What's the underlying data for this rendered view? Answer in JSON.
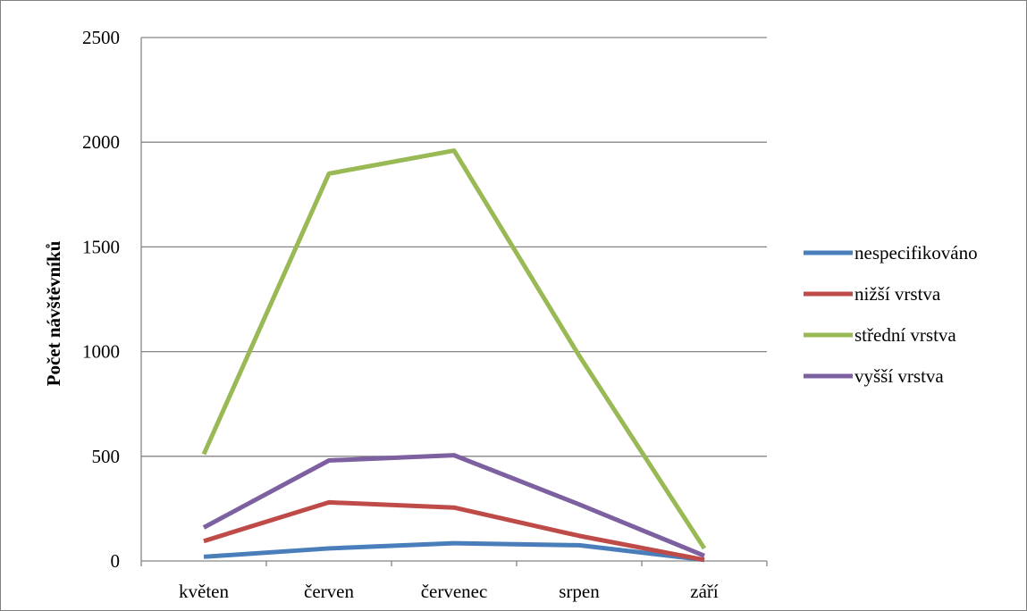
{
  "chart_data": {
    "type": "line",
    "title": "",
    "xlabel": "",
    "ylabel": "Počet návštěvníků",
    "categories": [
      "květen",
      "červen",
      "červenec",
      "srpen",
      "září"
    ],
    "ylim": [
      0,
      2500
    ],
    "yticks": [
      0,
      500,
      1000,
      1500,
      2000,
      2500
    ],
    "grid": true,
    "legend_position": "right",
    "series": [
      {
        "name": "nespecifikováno",
        "color": "#4a7ebb",
        "values": [
          20,
          60,
          85,
          75,
          5
        ]
      },
      {
        "name": "nižší vrstva",
        "color": "#be4b48",
        "values": [
          95,
          280,
          255,
          120,
          5
        ]
      },
      {
        "name": "střední vrstva",
        "color": "#98b954",
        "values": [
          510,
          1850,
          1960,
          980,
          60
        ]
      },
      {
        "name": "vyšší vrstva",
        "color": "#7d60a0",
        "values": [
          160,
          480,
          505,
          270,
          25
        ]
      }
    ]
  }
}
